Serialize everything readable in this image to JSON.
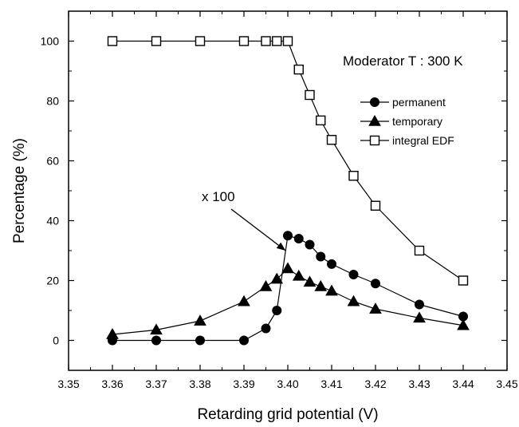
{
  "chart_data": {
    "type": "line",
    "title": "",
    "xlabel": "Retarding grid potential (V)",
    "ylabel": "Percentage (%)",
    "xlim": [
      3.35,
      3.45
    ],
    "ylim": [
      -10,
      110
    ],
    "xticks": [
      "3.35",
      "3.36",
      "3.37",
      "3.38",
      "3.39",
      "3.40",
      "3.41",
      "3.42",
      "3.43",
      "3.44",
      "3.45"
    ],
    "yticks": [
      "0",
      "20",
      "40",
      "60",
      "80",
      "100"
    ],
    "grid": false,
    "legend_position": "right",
    "series": [
      {
        "name": "permanent",
        "marker": "filled-circle",
        "color": "#000000",
        "points": [
          [
            3.36,
            0
          ],
          [
            3.37,
            0
          ],
          [
            3.38,
            0
          ],
          [
            3.39,
            0
          ],
          [
            3.395,
            4
          ],
          [
            3.3975,
            10
          ],
          [
            3.4,
            35
          ],
          [
            3.4025,
            34
          ],
          [
            3.405,
            32
          ],
          [
            3.4075,
            28
          ],
          [
            3.41,
            25.5
          ],
          [
            3.415,
            22
          ],
          [
            3.42,
            19
          ],
          [
            3.43,
            12
          ],
          [
            3.44,
            8
          ]
        ]
      },
      {
        "name": "temporary",
        "marker": "filled-triangle",
        "color": "#000000",
        "points": [
          [
            3.36,
            2
          ],
          [
            3.37,
            3.5
          ],
          [
            3.38,
            6.5
          ],
          [
            3.39,
            13
          ],
          [
            3.395,
            18
          ],
          [
            3.3975,
            20.5
          ],
          [
            3.4,
            24
          ],
          [
            3.4025,
            21.5
          ],
          [
            3.405,
            19.5
          ],
          [
            3.4075,
            18
          ],
          [
            3.41,
            16.5
          ],
          [
            3.415,
            13
          ],
          [
            3.42,
            10.5
          ],
          [
            3.43,
            7.5
          ],
          [
            3.44,
            5
          ]
        ]
      },
      {
        "name": "integral EDF",
        "marker": "open-square",
        "color": "#000000",
        "points": [
          [
            3.36,
            100
          ],
          [
            3.37,
            100
          ],
          [
            3.38,
            100
          ],
          [
            3.39,
            100
          ],
          [
            3.395,
            100
          ],
          [
            3.3975,
            100
          ],
          [
            3.4,
            100
          ],
          [
            3.4025,
            90.5
          ],
          [
            3.405,
            82
          ],
          [
            3.4075,
            73.5
          ],
          [
            3.41,
            67
          ],
          [
            3.415,
            55
          ],
          [
            3.42,
            45
          ],
          [
            3.43,
            30
          ],
          [
            3.44,
            20
          ]
        ]
      }
    ],
    "annotations": [
      {
        "text": "Moderator T : 300 K"
      },
      {
        "text": "x 100",
        "arrow_to": [
          3.3995,
          30
        ]
      }
    ]
  }
}
